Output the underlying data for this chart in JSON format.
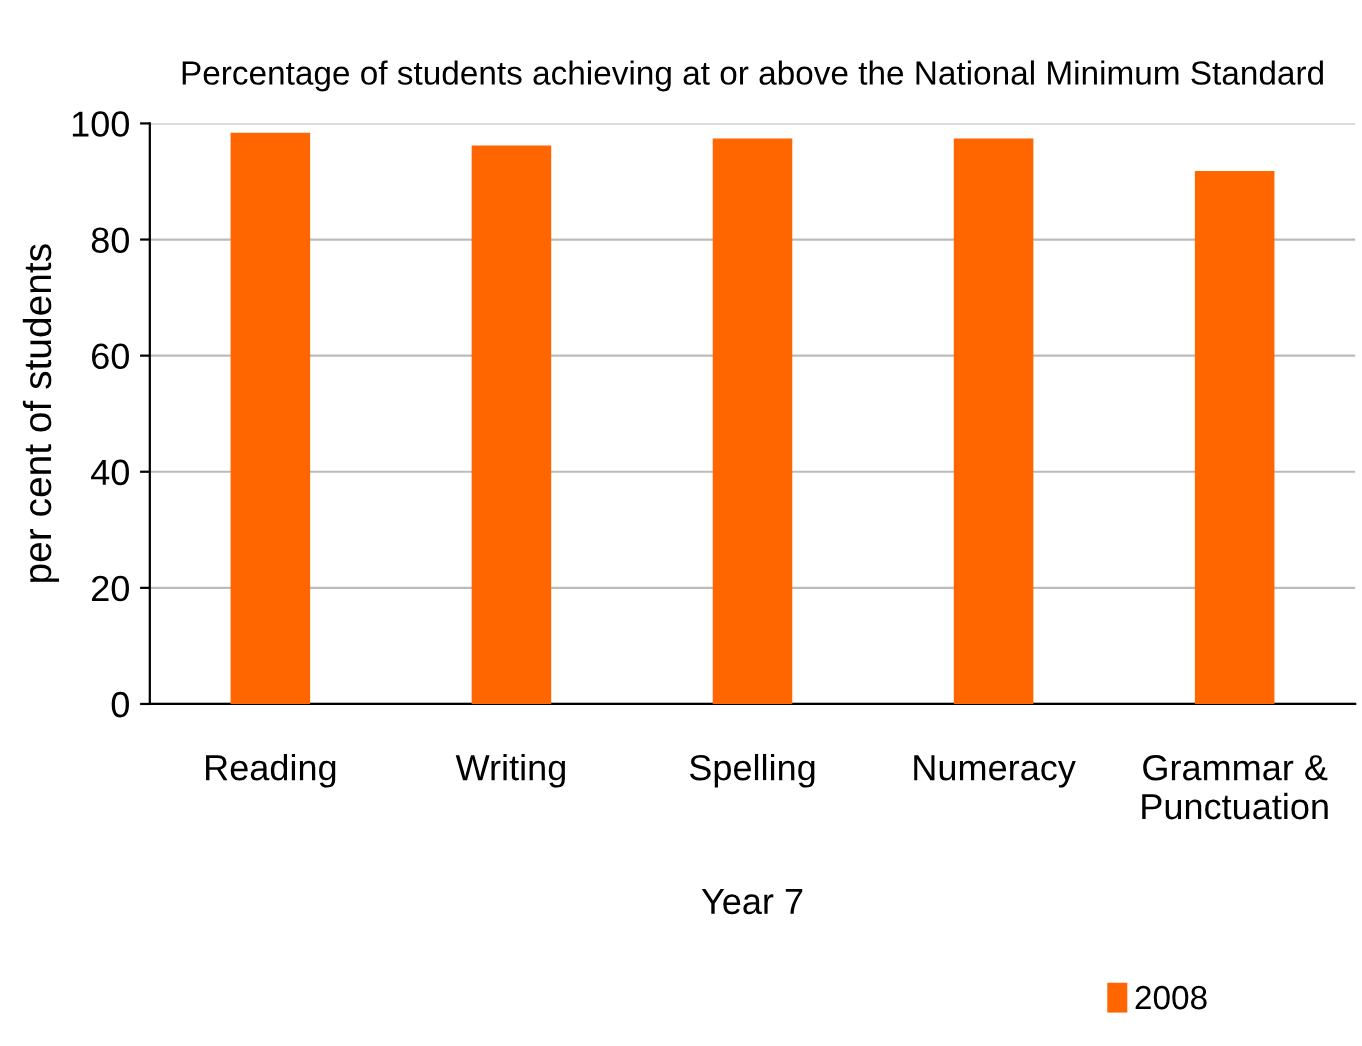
{
  "chart_data": {
    "type": "bar",
    "title": "Percentage of students achieving at or above the National Minimum Standard",
    "xlabel": "Year 7",
    "ylabel": "per cent of students",
    "categories": [
      "Reading",
      "Writing",
      "Spelling",
      "Numeracy",
      "Grammar &\nPunctuation"
    ],
    "series": [
      {
        "name": "2008",
        "color": "#ff6600",
        "values": [
          98.4,
          96.2,
          97.4,
          97.4,
          91.8
        ]
      }
    ],
    "ylim": [
      0,
      100
    ],
    "yticks": [
      0,
      20,
      40,
      60,
      80,
      100
    ],
    "grid": "y",
    "legend": "bottom right"
  }
}
